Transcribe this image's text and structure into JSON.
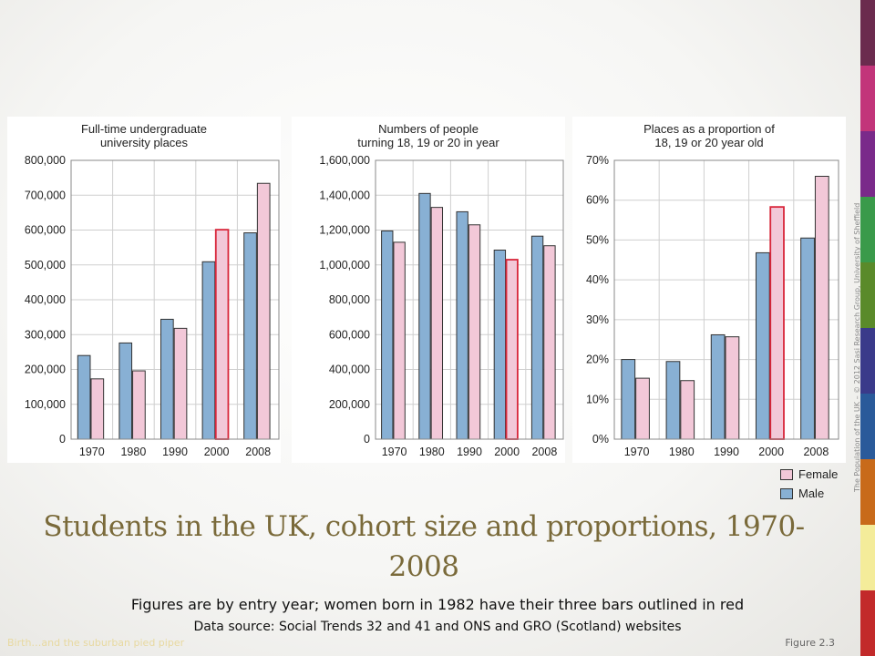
{
  "title": "Students in the UK, cohort size and proportions, 1970-2008",
  "subtitle_1": "Figures are by entry year; women born in 1982 have their three bars outlined in red",
  "subtitle_2": "Data source: Social Trends 32 and 41 and ONS and GRO (Scotland) websites",
  "footer_left": "Birth…and the suburban pied piper",
  "footer_right": "Figure 2.3",
  "side_credit": "The Population of the UK – © 2012 Sasi Research Group, University of Sheffield",
  "legend": [
    {
      "label": "Female",
      "color": "#f2c8d8"
    },
    {
      "label": "Male",
      "color": "#88b0d4"
    }
  ],
  "colors": {
    "male": "#88b0d4",
    "female": "#f2c8d8",
    "highlight": "#d8263a",
    "bar_border": "#333333",
    "grid": "#cfcfcf"
  },
  "stripe_colors": [
    "#6b2b4e",
    "#c2357a",
    "#7a2a8a",
    "#3a9a4a",
    "#5a8a2a",
    "#3a3a8a",
    "#2a5a9a",
    "#c86a1a",
    "#f4ec9a",
    "#c22a2a"
  ],
  "chart_data": [
    {
      "type": "bar",
      "title_lines": [
        "Full-time undergraduate",
        "university places"
      ],
      "categories": [
        "1970",
        "1980",
        "1990",
        "2000",
        "2008"
      ],
      "series": [
        {
          "name": "Male",
          "values": [
            240000,
            276000,
            344000,
            509000,
            592000
          ]
        },
        {
          "name": "Female",
          "values": [
            173000,
            196000,
            318000,
            601000,
            734000
          ]
        }
      ],
      "highlight": {
        "series": "Female",
        "category": "2000"
      },
      "ylim": [
        0,
        800000
      ],
      "yticks": [
        0,
        100000,
        200000,
        300000,
        400000,
        500000,
        600000,
        700000,
        800000
      ],
      "ytick_labels": [
        "0",
        "100,000",
        "200,000",
        "300,000",
        "400,000",
        "500,000",
        "600,000",
        "700,000",
        "800,000"
      ],
      "grid": true
    },
    {
      "type": "bar",
      "title_lines": [
        "Numbers of people",
        "turning 18, 19 or 20 in year"
      ],
      "categories": [
        "1970",
        "1980",
        "1990",
        "2000",
        "2008"
      ],
      "series": [
        {
          "name": "Male",
          "values": [
            1195000,
            1410000,
            1305000,
            1085000,
            1165000
          ]
        },
        {
          "name": "Female",
          "values": [
            1130000,
            1330000,
            1230000,
            1030000,
            1110000
          ]
        }
      ],
      "highlight": {
        "series": "Female",
        "category": "2000"
      },
      "ylim": [
        0,
        1600000
      ],
      "yticks": [
        0,
        200000,
        400000,
        600000,
        800000,
        1000000,
        1200000,
        1400000,
        1600000
      ],
      "ytick_labels": [
        "0",
        "200,000",
        "400,000",
        "600,000",
        "800,000",
        "1,000,000",
        "1,200,000",
        "1,400,000",
        "1,600,000"
      ],
      "grid": true
    },
    {
      "type": "bar",
      "title_lines": [
        "Places as a proportion of",
        "18, 19 or 20 year old"
      ],
      "categories": [
        "1970",
        "1980",
        "1990",
        "2000",
        "2008"
      ],
      "series": [
        {
          "name": "Male",
          "values": [
            20,
            19.5,
            26.2,
            46.8,
            50.5
          ]
        },
        {
          "name": "Female",
          "values": [
            15.3,
            14.7,
            25.7,
            58.3,
            66
          ]
        }
      ],
      "highlight": {
        "series": "Female",
        "category": "2000"
      },
      "ylim": [
        0,
        70
      ],
      "yticks": [
        0,
        10,
        20,
        30,
        40,
        50,
        60,
        70
      ],
      "ytick_labels": [
        "0%",
        "10%",
        "20%",
        "30%",
        "40%",
        "50%",
        "60%",
        "70%"
      ],
      "grid": true
    }
  ]
}
